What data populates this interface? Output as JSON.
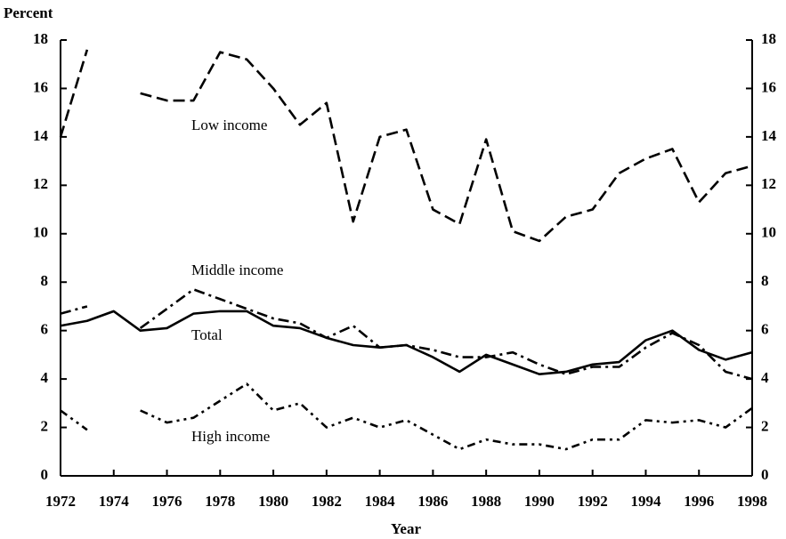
{
  "chart_data": {
    "type": "line",
    "y_label": "Percent",
    "x_label": "Year",
    "x": [
      1972,
      1973,
      1974,
      1975,
      1976,
      1977,
      1978,
      1979,
      1980,
      1981,
      1982,
      1983,
      1984,
      1985,
      1986,
      1987,
      1988,
      1989,
      1990,
      1991,
      1992,
      1993,
      1994,
      1995,
      1996,
      1997,
      1998
    ],
    "series": [
      {
        "name": "Low income",
        "color": "#000000",
        "style": "dashed",
        "values": [
          14.0,
          17.6,
          null,
          15.8,
          15.5,
          15.5,
          17.5,
          17.2,
          16.0,
          14.5,
          15.4,
          10.5,
          14.0,
          14.3,
          11.0,
          10.4,
          13.9,
          10.1,
          9.7,
          10.7,
          11.0,
          12.5,
          13.1,
          13.5,
          11.3,
          12.5,
          12.8
        ]
      },
      {
        "name": "Middle income",
        "color": "#000000",
        "style": "dashdot",
        "values": [
          6.7,
          7.0,
          null,
          6.1,
          6.9,
          7.7,
          7.3,
          6.9,
          6.5,
          6.3,
          5.7,
          6.2,
          5.3,
          5.4,
          5.2,
          4.9,
          4.9,
          5.1,
          4.6,
          4.2,
          4.5,
          4.5,
          5.3,
          5.9,
          5.4,
          4.3,
          4.0
        ]
      },
      {
        "name": "Total",
        "color": "#000000",
        "style": "solid",
        "values": [
          6.2,
          6.4,
          6.8,
          6.0,
          6.1,
          6.7,
          6.8,
          6.8,
          6.2,
          6.1,
          5.7,
          5.4,
          5.3,
          5.4,
          4.9,
          4.3,
          5.0,
          4.6,
          4.2,
          4.3,
          4.6,
          4.7,
          5.6,
          6.0,
          5.2,
          4.8,
          5.1
        ]
      },
      {
        "name": "High income",
        "color": "#000000",
        "style": "dashdotdot",
        "values": [
          2.7,
          1.9,
          null,
          2.7,
          2.2,
          2.4,
          3.1,
          3.8,
          2.7,
          3.0,
          2.0,
          2.4,
          2.0,
          2.3,
          1.7,
          1.1,
          1.5,
          1.3,
          1.3,
          1.1,
          1.5,
          1.5,
          2.3,
          2.2,
          2.3,
          2.0,
          2.8
        ]
      }
    ],
    "xlim": [
      1972,
      1998
    ],
    "xticks": [
      1972,
      1974,
      1976,
      1978,
      1980,
      1982,
      1984,
      1986,
      1988,
      1990,
      1992,
      1994,
      1996,
      1998
    ],
    "ylim": [
      0,
      18
    ],
    "yticks": [
      0,
      2,
      4,
      6,
      8,
      10,
      12,
      14,
      16,
      18
    ],
    "right_axis_labels": true
  }
}
